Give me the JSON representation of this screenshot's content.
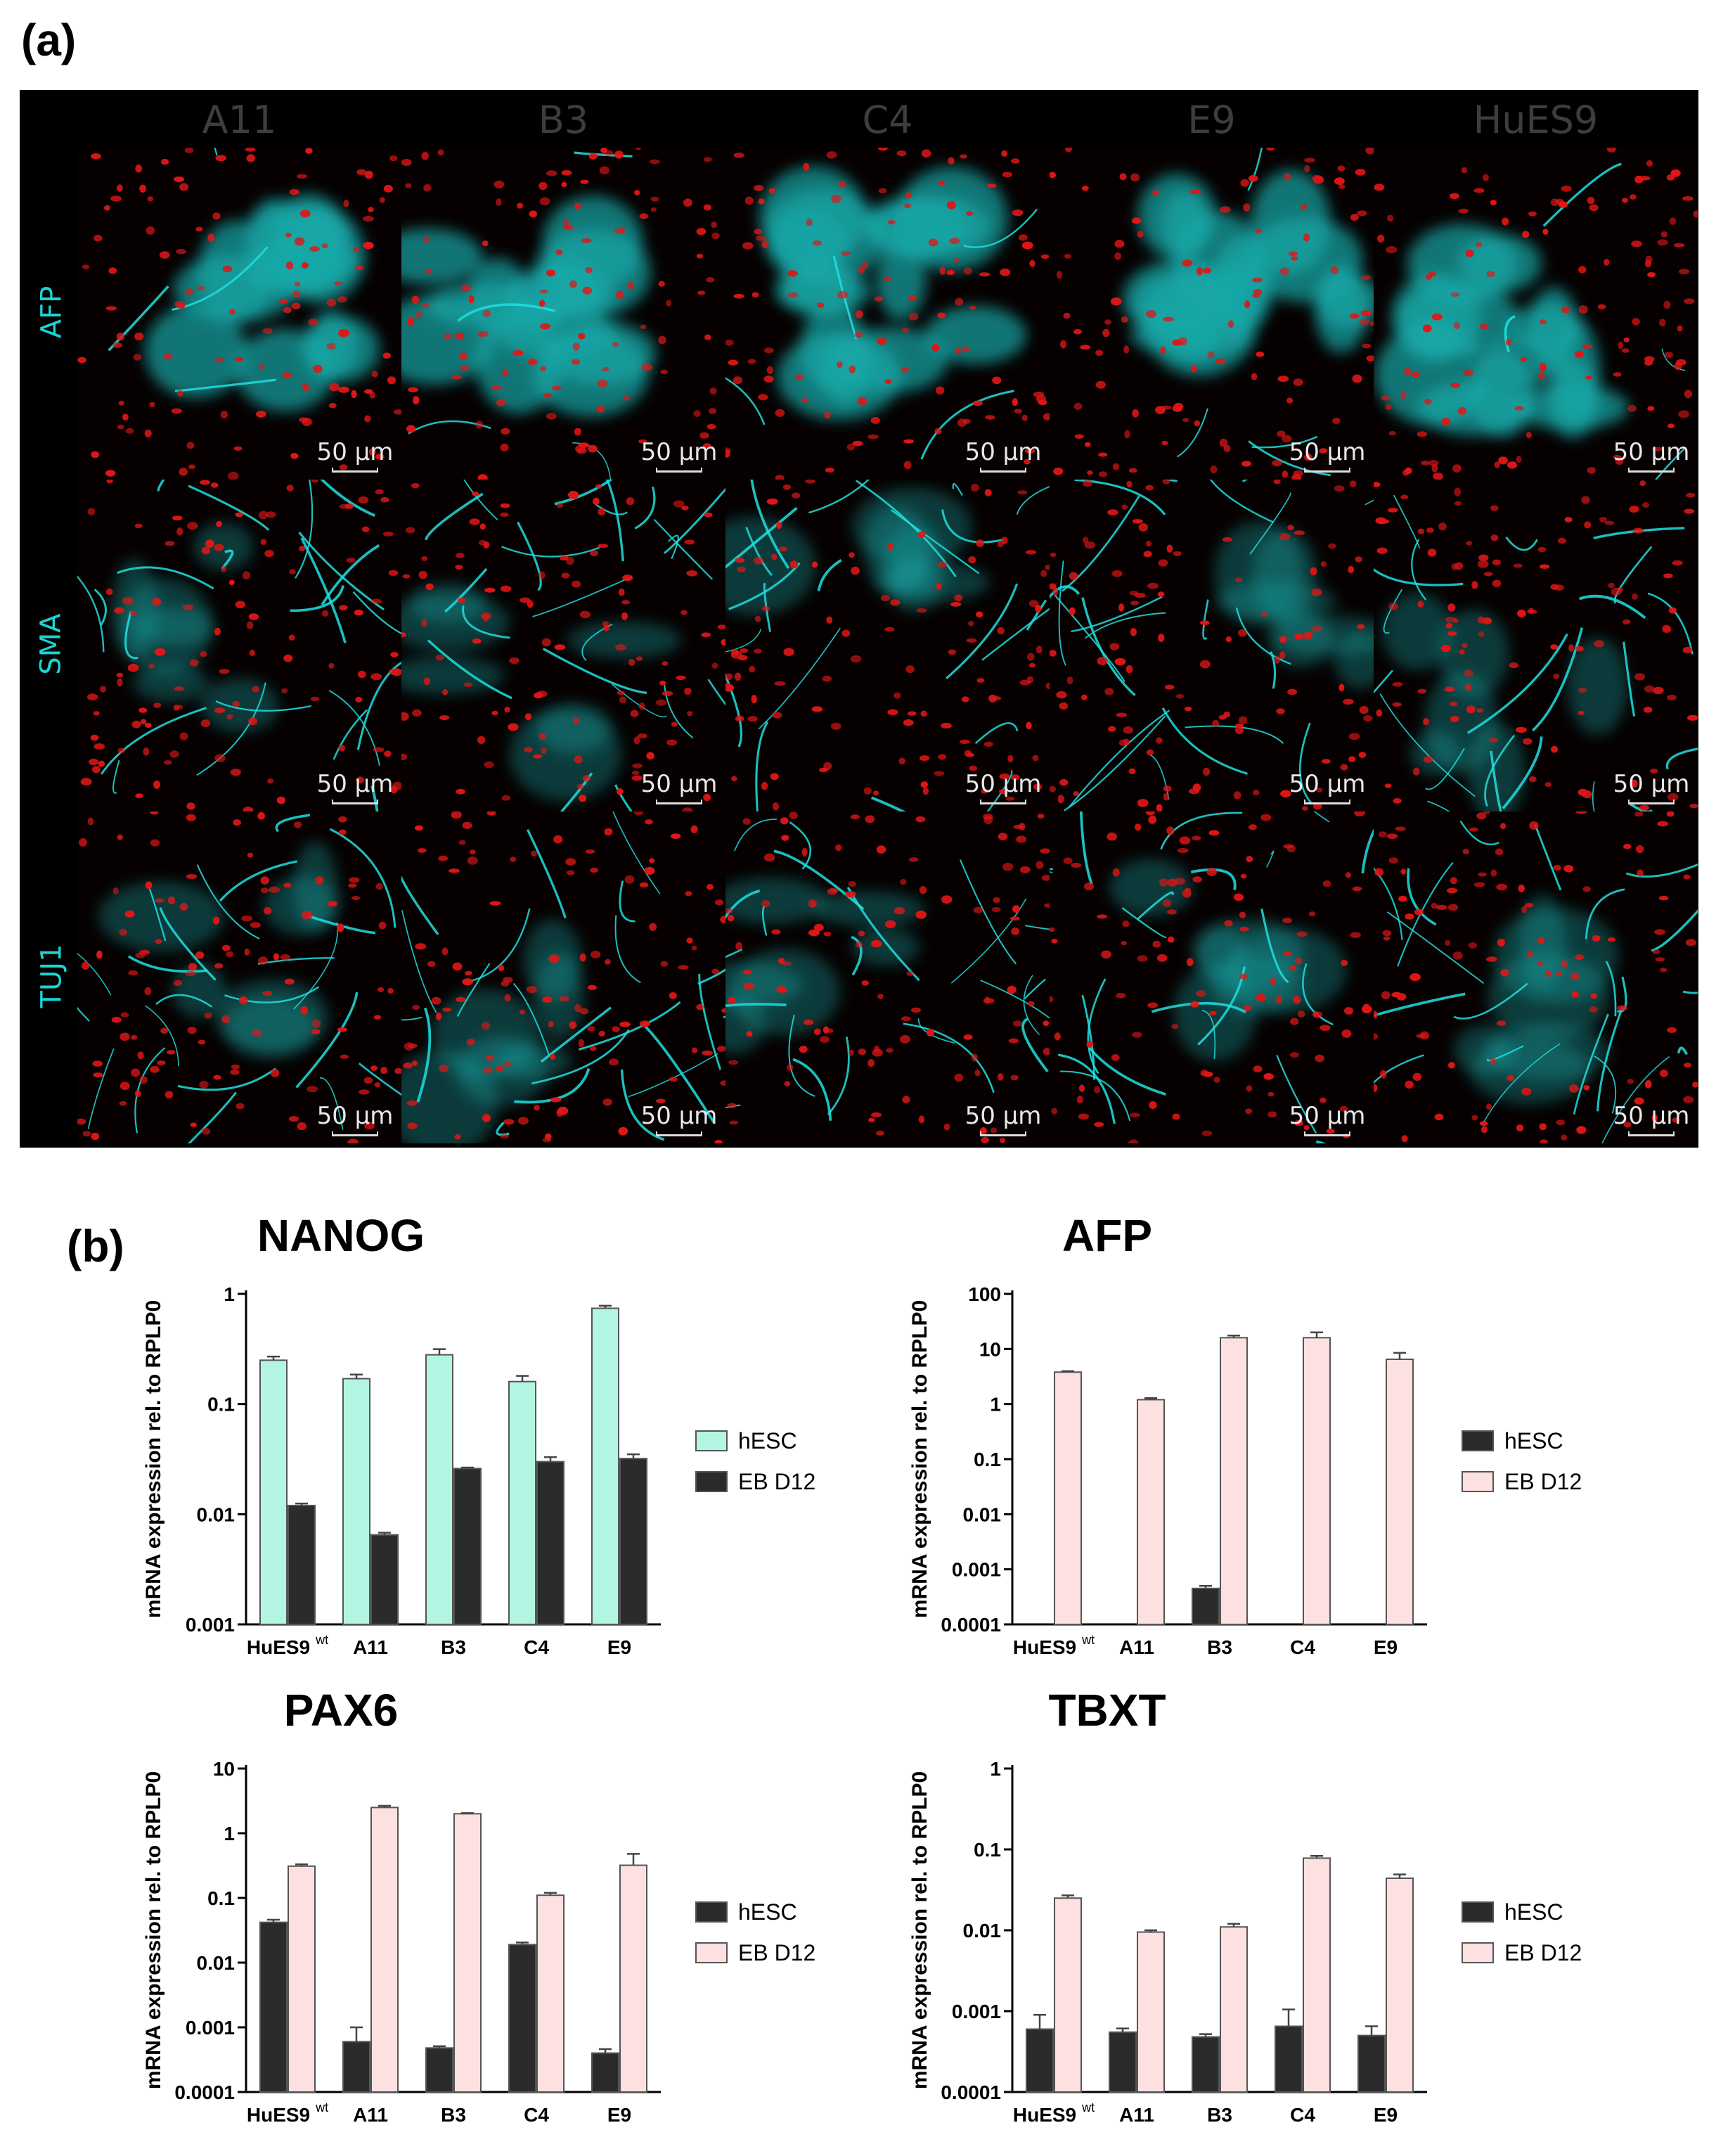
{
  "panel_labels": {
    "a": "(a)",
    "b": "(b)"
  },
  "micrograph": {
    "columns": [
      "A11",
      "B3",
      "C4",
      "E9",
      "HuES9"
    ],
    "rows": [
      "AFP",
      "SMA",
      "TUJ1"
    ],
    "scale_bar": "50 µm",
    "colors": {
      "stain": "#1fe0e0",
      "nuclei": "#e01616",
      "header": "#3d3d3d",
      "row_label": "#19d6d6"
    }
  },
  "chart_data": [
    {
      "type": "bar",
      "title": "NANOG",
      "ylabel": "mRNA expression rel. to RPLP0",
      "yscale": "log",
      "ylim": [
        0.001,
        1
      ],
      "yticks": [
        "0.001",
        "0.01",
        "0.1",
        "1"
      ],
      "categories": [
        "HuES9",
        "A11",
        "B3",
        "C4",
        "E9"
      ],
      "category_superscript": [
        "wt",
        "",
        "",
        "",
        ""
      ],
      "series": [
        {
          "name": "hESC",
          "values": [
            0.25,
            0.17,
            0.28,
            0.16,
            0.74
          ],
          "err": [
            0.02,
            0.015,
            0.035,
            0.02,
            0.04
          ],
          "color": "#b3f5e3"
        },
        {
          "name": "EB D12",
          "values": [
            0.012,
            0.0065,
            0.026,
            0.03,
            0.032
          ],
          "err": [
            0.0005,
            0.0003,
            0.0005,
            0.003,
            0.003
          ],
          "color": "#2b2b2b"
        }
      ],
      "legend": "right"
    },
    {
      "type": "bar",
      "title": "AFP",
      "ylabel": "mRNA expression rel. to RPLP0",
      "yscale": "log",
      "ylim": [
        0.0001,
        100
      ],
      "yticks": [
        "0.0001",
        "0.001",
        "0.01",
        "0.1",
        "1",
        "10",
        "100"
      ],
      "categories": [
        "HuES9",
        "A11",
        "B3",
        "C4",
        "E9"
      ],
      "category_superscript": [
        "wt",
        "",
        "",
        "",
        ""
      ],
      "series": [
        {
          "name": "hESC",
          "values": [
            null,
            null,
            0.00045,
            null,
            null
          ],
          "err": [
            0,
            0,
            5e-05,
            0,
            0
          ],
          "color": "#2b2b2b"
        },
        {
          "name": "EB D12",
          "values": [
            3.8,
            1.2,
            16,
            16,
            6.5
          ],
          "err": [
            0.15,
            0.08,
            1.5,
            4,
            2
          ],
          "color": "#fde0e0"
        }
      ],
      "legend": "right"
    },
    {
      "type": "bar",
      "title": "PAX6",
      "ylabel": "mRNA expression rel. to RPLP0",
      "yscale": "log",
      "ylim": [
        0.0001,
        10
      ],
      "yticks": [
        "0.0001",
        "0.001",
        "0.01",
        "0.1",
        "1",
        "10"
      ],
      "categories": [
        "HuES9",
        "A11",
        "B3",
        "C4",
        "E9"
      ],
      "category_superscript": [
        "wt",
        "",
        "",
        "",
        ""
      ],
      "series": [
        {
          "name": "hESC",
          "values": [
            0.042,
            0.0006,
            0.00048,
            0.019,
            0.0004
          ],
          "err": [
            0.004,
            0.0004,
            3e-05,
            0.0015,
            6e-05
          ],
          "color": "#2b2b2b"
        },
        {
          "name": "EB D12",
          "values": [
            0.31,
            2.5,
            2.0,
            0.11,
            0.32
          ],
          "err": [
            0.02,
            0.15,
            0.05,
            0.01,
            0.16
          ],
          "color": "#fde0e0"
        }
      ],
      "legend": "right"
    },
    {
      "type": "bar",
      "title": "TBXT",
      "ylabel": "mRNA expression rel. to RPLP0",
      "yscale": "log",
      "ylim": [
        0.0001,
        1
      ],
      "yticks": [
        "0.0001",
        "0.001",
        "0.01",
        "0.1",
        "1"
      ],
      "categories": [
        "HuES9",
        "A11",
        "B3",
        "C4",
        "E9"
      ],
      "category_superscript": [
        "wt",
        "",
        "",
        "",
        ""
      ],
      "series": [
        {
          "name": "hESC",
          "values": [
            0.0006,
            0.00055,
            0.00048,
            0.00065,
            0.0005
          ],
          "err": [
            0.0003,
            6e-05,
            4e-05,
            0.0004,
            0.00015
          ],
          "color": "#2b2b2b"
        },
        {
          "name": "EB D12",
          "values": [
            0.025,
            0.0095,
            0.011,
            0.078,
            0.044
          ],
          "err": [
            0.002,
            0.0005,
            0.001,
            0.005,
            0.005
          ],
          "color": "#fde0e0"
        }
      ],
      "legend": "right"
    }
  ]
}
